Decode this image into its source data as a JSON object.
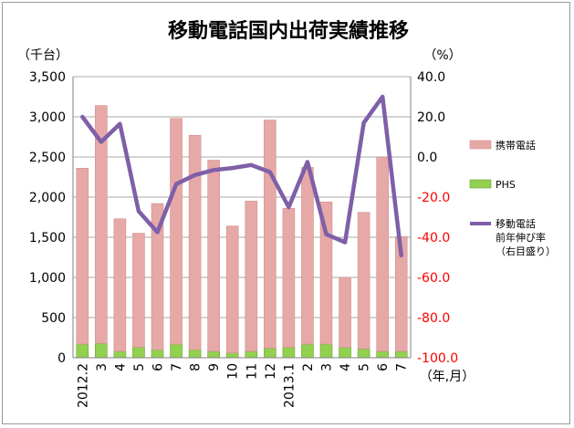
{
  "chart_data": {
    "type": "bar",
    "title": "移動電話国内出荷実績推移",
    "y_left_unit": "（千台）",
    "y_right_unit": "（%）",
    "x_unit": "（年,月）",
    "categories": [
      "2012.2",
      "3",
      "4",
      "5",
      "6",
      "7",
      "8",
      "9",
      "10",
      "11",
      "12",
      "2013.1",
      "2",
      "3",
      "4",
      "5",
      "6",
      "7"
    ],
    "y_left": {
      "ylim": [
        0,
        3500
      ],
      "ticks": [
        "0",
        "500",
        "1,000",
        "1,500",
        "2,000",
        "2,500",
        "3,000",
        "3,500"
      ]
    },
    "y_right": {
      "ylim": [
        -100,
        40
      ],
      "ticks": [
        "-100.0",
        "-80.0",
        "-60.0",
        "-40.0",
        "-20.0",
        "0.0",
        "20.0",
        "40.0"
      ]
    },
    "grid": true,
    "legend_position": "right",
    "series": [
      {
        "name": "PHS",
        "kind": "stacked-bar",
        "axis": "left",
        "color": "#92d050",
        "values": [
          170,
          180,
          80,
          130,
          100,
          170,
          100,
          80,
          60,
          80,
          120,
          130,
          170,
          170,
          130,
          110,
          80,
          80
        ]
      },
      {
        "name": "携帯電話",
        "kind": "stacked-bar",
        "axis": "left",
        "color": "#e6a9a7",
        "values": [
          2190,
          2960,
          1650,
          1420,
          1820,
          2810,
          2670,
          2380,
          1580,
          1870,
          2840,
          1730,
          2200,
          1770,
          870,
          1700,
          2420,
          1430
        ]
      },
      {
        "name": "移動電話前年伸び率（右目盛り）",
        "kind": "line",
        "axis": "right",
        "color": "#7f5fa8",
        "legend_lines": [
          "移動電話",
          "前年伸び率",
          "（右目盛り）"
        ],
        "values": [
          20,
          7.5,
          16.5,
          -27,
          -37.5,
          -13.5,
          -9,
          -6.5,
          -5.5,
          -4,
          -7.5,
          -25,
          -2.5,
          -38.5,
          -42.5,
          17,
          30,
          -49
        ]
      }
    ]
  }
}
